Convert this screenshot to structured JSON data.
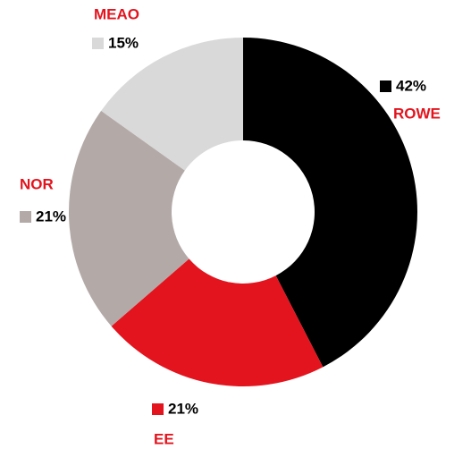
{
  "chart_data": {
    "type": "donut",
    "categories": [
      "ROWE",
      "EE",
      "NOR",
      "MEAO"
    ],
    "values": [
      42,
      21,
      21,
      15
    ],
    "value_labels": [
      "42%",
      "21%",
      "21%",
      "15%"
    ],
    "colors": [
      "#000000",
      "#e3141e",
      "#b3aaa8",
      "#d9d9d9"
    ],
    "category_color": "#e3141e"
  }
}
